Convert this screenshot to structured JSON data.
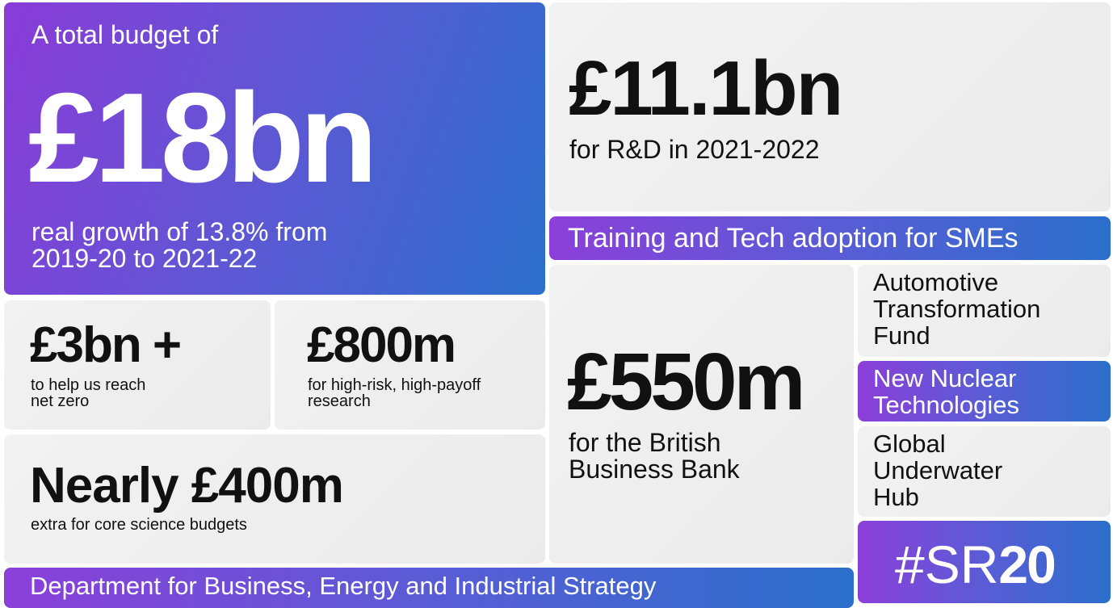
{
  "total": {
    "intro": "A total budget of",
    "amount": "£18bn",
    "note": [
      "real growth of 13.8% from",
      "2019-20 to 2021-22"
    ]
  },
  "rnd": {
    "amount": "£11.1bn",
    "note": "for R&D in 2021-2022"
  },
  "smes": "Training and Tech adoption for SMEs",
  "net_zero": {
    "amount": "£3bn +",
    "note": [
      "to help us reach",
      "net zero"
    ]
  },
  "research": {
    "amount": "£800m",
    "note": [
      "for high-risk, high-payoff",
      "research"
    ]
  },
  "science": {
    "amount": "Nearly £400m",
    "note": "extra for core science budgets"
  },
  "bank": {
    "amount": "£550m",
    "note": [
      "for the British",
      "Business Bank"
    ]
  },
  "automotive": [
    "Automotive",
    "Transformation",
    "Fund"
  ],
  "nuclear": [
    "New Nuclear",
    "Technologies"
  ],
  "underwater": [
    "Global",
    "Underwater",
    "Hub"
  ],
  "hashtag": {
    "prefix": "#SR",
    "number": "20"
  },
  "department": "Department for Business, Energy and Industrial Strategy"
}
